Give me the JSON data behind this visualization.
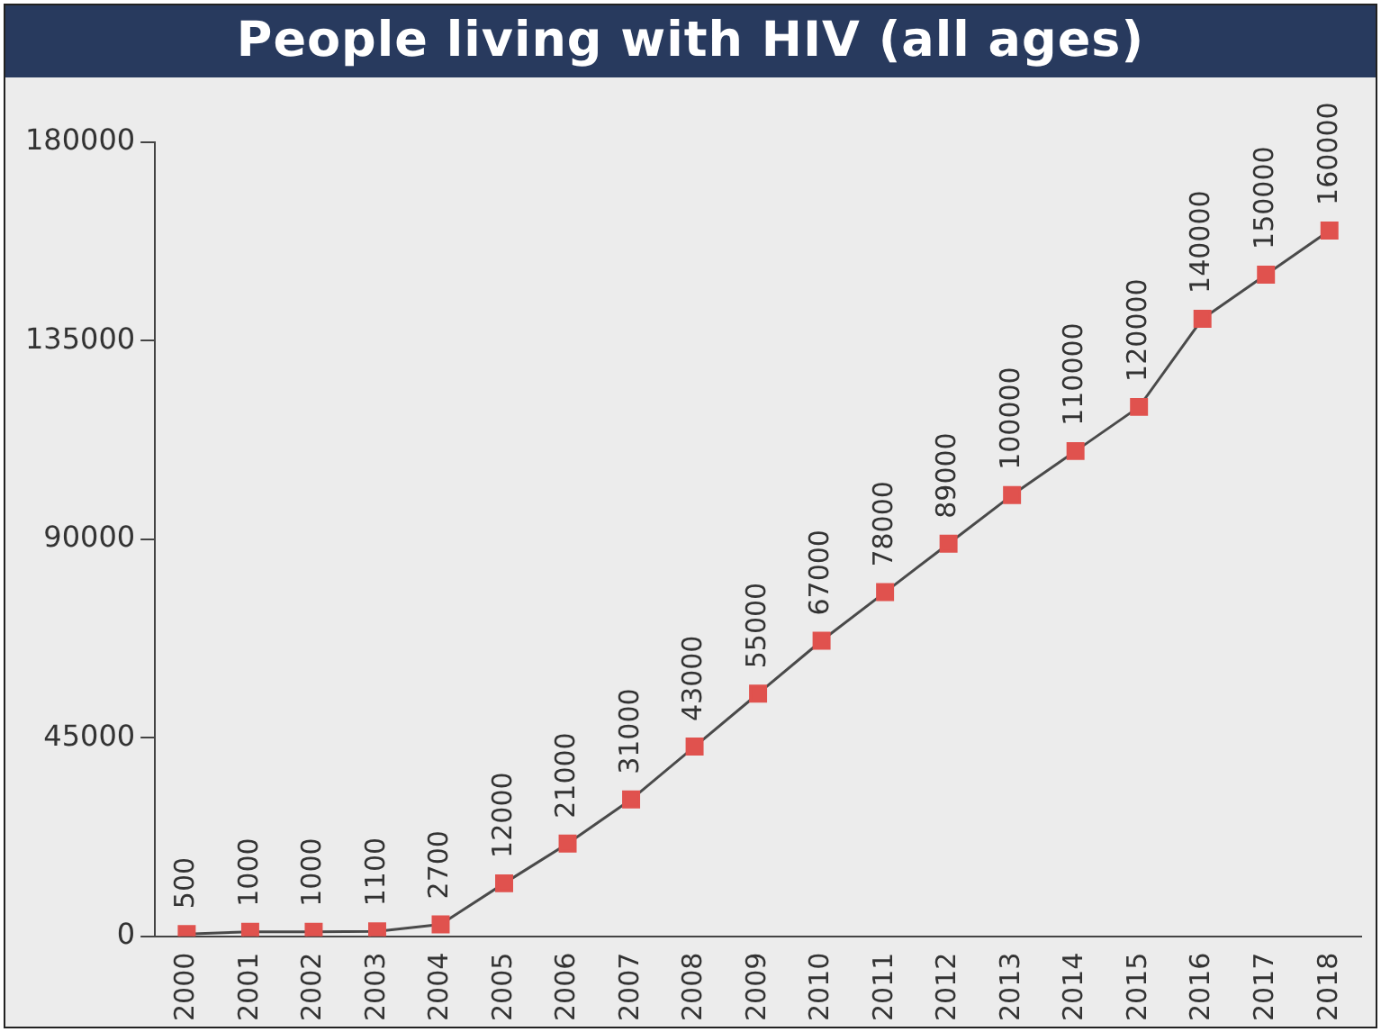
{
  "chart_data": {
    "type": "line",
    "title": "People living with HIV (all ages)",
    "categories": [
      "2000",
      "2001",
      "2002",
      "2003",
      "2004",
      "2005",
      "2006",
      "2007",
      "2008",
      "2009",
      "2010",
      "2011",
      "2012",
      "2013",
      "2014",
      "2015",
      "2016",
      "2017",
      "2018"
    ],
    "series": [
      {
        "color": "#e0524e",
        "values": [
          500,
          1000,
          1000,
          1100,
          2700,
          12000,
          21000,
          31000,
          43000,
          55000,
          67000,
          78000,
          89000,
          100000,
          110000,
          120000,
          140000,
          150000,
          160000
        ]
      }
    ],
    "ylim": [
      0,
      180000
    ],
    "yticks": [
      0,
      45000,
      90000,
      135000,
      180000
    ],
    "grid": false,
    "legend": false,
    "marker": "square",
    "line_style": "solid",
    "data_labels": true
  }
}
